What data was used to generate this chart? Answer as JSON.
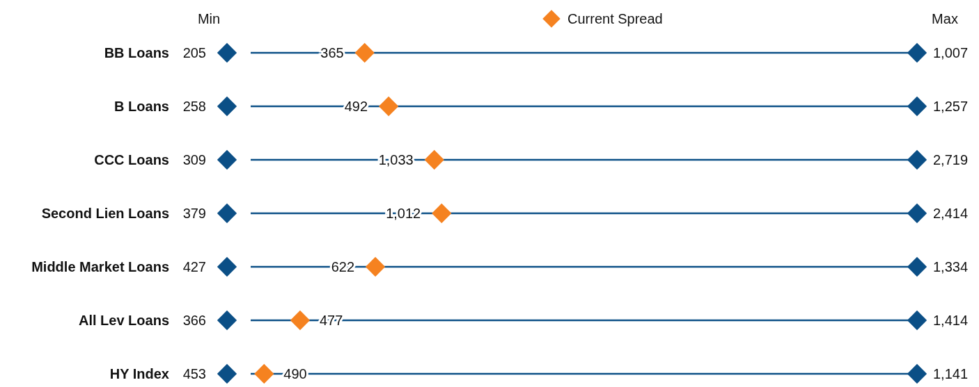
{
  "chart_data": {
    "type": "other",
    "categories": [
      "BB Loans",
      "B Loans",
      "CCC Loans",
      "Second Lien Loans",
      "Middle Market Loans",
      "All Lev Loans",
      "HY Index"
    ],
    "annotations": [
      "Min",
      "Max"
    ],
    "series": [
      {
        "color": "#0b4f86",
        "values": [
          205,
          258,
          309,
          379,
          427,
          366,
          453
        ],
        "value_labels": [
          "205",
          "258",
          "309",
          "379",
          "427",
          "366",
          "453"
        ]
      },
      {
        "name": "Current Spread",
        "color": "#f58220",
        "values": [
          365,
          492,
          1033,
          1012,
          622,
          477,
          490
        ],
        "value_labels": [
          "365",
          "492",
          "1,033",
          "1,012",
          "622",
          "477",
          "490"
        ]
      },
      {
        "color": "#0b4f86",
        "values": [
          1007,
          1257,
          2719,
          2414,
          1334,
          1414,
          1141
        ],
        "value_labels": [
          "1,007",
          "1,257",
          "2,719",
          "2,414",
          "1,334",
          "1,414",
          "1,141"
        ]
      }
    ],
    "legend": "top"
  }
}
